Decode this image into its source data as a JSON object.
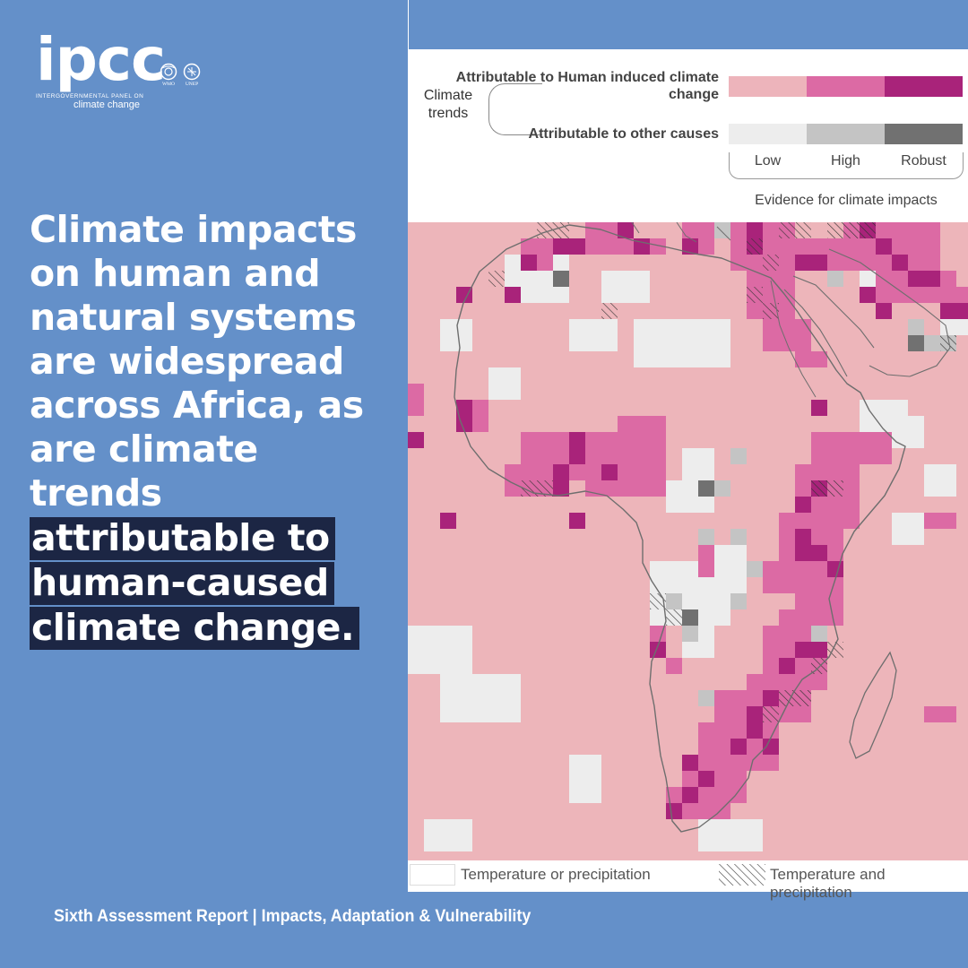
{
  "logo": {
    "wordmark": "ipcc",
    "line1": "INTERGOVERNMENTAL PANEL ON",
    "line2": "climate change",
    "badges": [
      "WMO",
      "UNEP"
    ]
  },
  "headline": {
    "plain_lines": [
      "Climate impacts",
      "on human and",
      "natural systems",
      "are widespread",
      "across Africa, as",
      "are climate",
      "trends"
    ],
    "highlight_lines": [
      "attributable to",
      "human-caused",
      "climate change."
    ]
  },
  "footer": "Sixth Assessment Report | Impacts, Adaptation & Vulnerability",
  "figure": {
    "legend_title": "Climate trends",
    "human_label": "Attributable to Human induced climate change",
    "other_label": "Attributable to other causes",
    "evidence_levels": [
      "Low",
      "High",
      "Robust"
    ],
    "evidence_caption": "Evidence for climate impacts",
    "colors": {
      "human": [
        "#edb4bb",
        "#dc6aa4",
        "#a9237a"
      ],
      "other": [
        "#ededed",
        "#c4c4c4",
        "#717171"
      ],
      "ocean": "#edb5ba",
      "outline": "#6e6e6e"
    },
    "bottom_legend": {
      "plain": "Temperature or precipitation",
      "hatched": "Temperature and precipitation"
    }
  }
}
